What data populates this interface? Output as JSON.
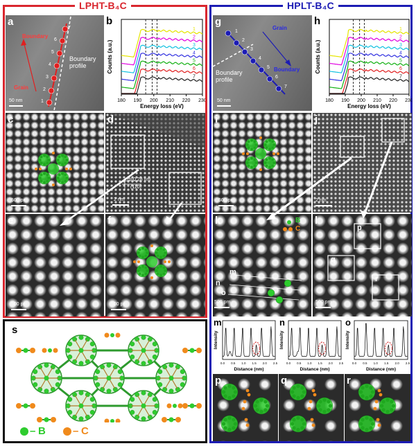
{
  "left_title": "LPHT-B₄C",
  "right_title": "HPLT-B₄C",
  "colors": {
    "left_frame": "#d9262e",
    "right_frame": "#1c1cb4",
    "boron": "#2ecc2e",
    "carbon": "#f08a1c"
  },
  "panels": {
    "a": "a",
    "b": "b",
    "c": "c",
    "d": "d",
    "e": "e",
    "f": "f",
    "g": "g",
    "h": "h",
    "i": "i",
    "j": "j",
    "k": "k",
    "l": "l",
    "m": "m",
    "n": "n",
    "o": "o",
    "p": "p",
    "q": "q",
    "r": "r",
    "s": "s"
  },
  "sem_a": {
    "boundary": "Boundary",
    "grain": "Grain",
    "profile": "Boundary\nprofile",
    "scale": "50 nm",
    "points": [
      "1",
      "2",
      "3",
      "4",
      "5",
      "6",
      "7"
    ]
  },
  "sem_g": {
    "grain": "Grain",
    "boundary": "Boundary",
    "profile": "Boundary\nprofile",
    "scale": "50 nm",
    "points": [
      "1",
      "2",
      "3",
      "4",
      "5",
      "6",
      "7"
    ]
  },
  "scales": {
    "c": "500 pm",
    "d": "2 nm",
    "e": "500 pm",
    "f": "500 pm",
    "i": "500 pm",
    "j": "2 nm",
    "k": "500 pm",
    "l": "500 pm"
  },
  "panel_d": {
    "spacing": "d=0.28 nm",
    "plane": "(110)"
  },
  "panel_k": {
    "b_legend": "B",
    "c_legend": "C",
    "lines": [
      "m",
      "n",
      "o"
    ]
  },
  "panel_l": {
    "boxes": [
      "p",
      "q",
      "r"
    ]
  },
  "legend_s": {
    "b": "B",
    "c": "C",
    "dash": "–"
  },
  "chart_data": [
    {
      "type": "line",
      "panel": "b",
      "xlabel": "Energy loss (eV)",
      "ylabel": "Counts (a.u.)",
      "xlim": [
        180,
        230
      ],
      "x_ticks": [
        180,
        190,
        200,
        210,
        220,
        230
      ],
      "reference_lines_x": [
        195,
        199,
        202
      ],
      "series": [
        {
          "name": "1",
          "color": "#e5e500"
        },
        {
          "name": "2",
          "color": "#e000e0"
        },
        {
          "name": "3",
          "color": "#10c0e0"
        },
        {
          "name": "4",
          "color": "#3030e0"
        },
        {
          "name": "5",
          "color": "#10b010"
        },
        {
          "name": "6",
          "color": "#e02020"
        },
        {
          "name": "7",
          "color": "#202020"
        }
      ]
    },
    {
      "type": "line",
      "panel": "h",
      "xlabel": "Energy loss (eV)",
      "ylabel": "Counts (a.u.)",
      "xlim": [
        180,
        230
      ],
      "x_ticks": [
        180,
        190,
        200,
        210,
        220,
        230
      ],
      "reference_lines_x": [
        195,
        199,
        202
      ],
      "series": [
        {
          "name": "1",
          "color": "#e5e500"
        },
        {
          "name": "2",
          "color": "#e000e0"
        },
        {
          "name": "3",
          "color": "#10c0e0"
        },
        {
          "name": "4",
          "color": "#3030e0"
        },
        {
          "name": "5",
          "color": "#10b010"
        },
        {
          "name": "6",
          "color": "#e02020"
        },
        {
          "name": "7",
          "color": "#202020"
        }
      ]
    },
    {
      "type": "line",
      "panel": "m",
      "xlabel": "Distance (nm)",
      "ylabel": "Intensity",
      "xlim": [
        0,
        2.5
      ],
      "x_ticks": [
        0.0,
        0.5,
        1.0,
        1.5,
        2.0,
        2.5
      ]
    },
    {
      "type": "line",
      "panel": "n",
      "xlabel": "Distance (nm)",
      "ylabel": "Intensity",
      "xlim": [
        0,
        2.5
      ],
      "x_ticks": [
        0.0,
        0.5,
        1.0,
        1.5,
        2.0,
        2.5
      ]
    },
    {
      "type": "line",
      "panel": "o",
      "xlabel": "Distance (nm)",
      "ylabel": "Intensity",
      "xlim": [
        0,
        2.5
      ],
      "x_ticks": [
        0.0,
        0.5,
        1.0,
        1.5,
        2.0,
        2.5
      ]
    }
  ]
}
